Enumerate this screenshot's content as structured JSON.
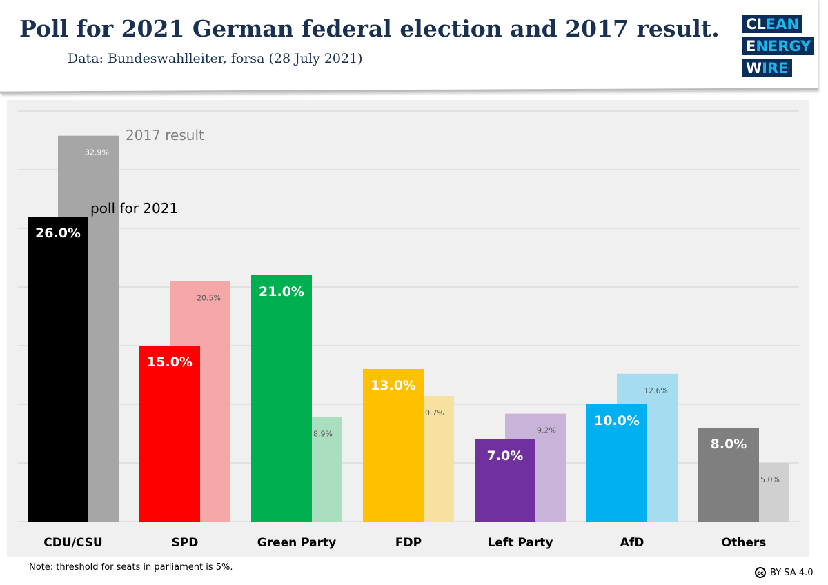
{
  "header": {
    "title": "Poll for 2021 German federal election and 2017 result.",
    "subtitle": "Data: Bundeswahlleiter, forsa (28 July 2021)"
  },
  "logo": {
    "lines": [
      [
        "CL",
        "EAN"
      ],
      [
        "E",
        "NERGY"
      ],
      [
        "W",
        "IRE"
      ]
    ]
  },
  "footer": {
    "note": "Note: threshold for seats in parliament is 5%.",
    "license": "BY SA 4.0",
    "license_icon": "cc"
  },
  "chart_data": {
    "type": "bar",
    "categories": [
      "CDU/CSU",
      "SPD",
      "Green Party",
      "FDP",
      "Left Party",
      "AfD",
      "Others"
    ],
    "series": [
      {
        "name": "poll for 2021",
        "values": [
          26.0,
          15.0,
          21.0,
          13.0,
          7.0,
          10.0,
          8.0
        ],
        "labels": [
          "26.0%",
          "15.0%",
          "21.0%",
          "13.0%",
          "7.0%",
          "10.0%",
          "8.0%"
        ],
        "colors": [
          "#000000",
          "#ff0000",
          "#00b050",
          "#ffc000",
          "#7030a0",
          "#00b0f0",
          "#7f7f7f"
        ]
      },
      {
        "name": "2017 result",
        "values": [
          32.9,
          20.5,
          8.9,
          10.7,
          9.2,
          12.6,
          5.0
        ],
        "labels": [
          "32.9%",
          "20.5%",
          "8.9%",
          "10.7%",
          "9.2%",
          "12.6%",
          "5.0%"
        ],
        "colors": [
          "#a6a6a6",
          "#f4a7a7",
          "#a9dfbf",
          "#f7e1a1",
          "#c9b3d9",
          "#a6dcef",
          "#d0d0d0"
        ]
      }
    ],
    "ylim": [
      0,
      35
    ],
    "grid": true
  }
}
